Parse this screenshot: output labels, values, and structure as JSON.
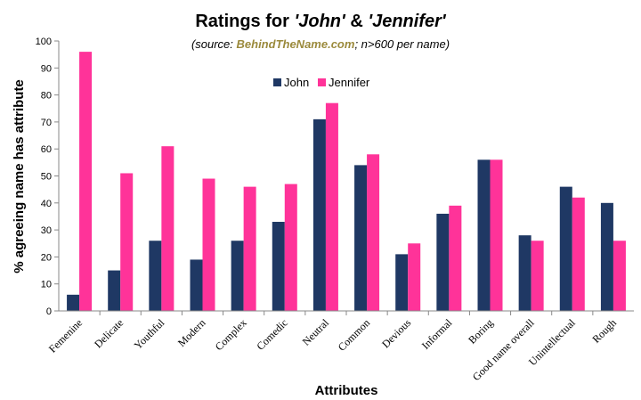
{
  "chart_data": {
    "type": "bar",
    "title_prefix": "Ratings for ",
    "title_name1": "'John'",
    "title_amp": " & ",
    "title_name2": "'Jennifer'",
    "subtitle_open": "(source: ",
    "subtitle_site": "BehindTheName.com",
    "subtitle_rest": "; n>600 per name)",
    "xlabel": "Attributes",
    "ylabel": "% agreeing name has attribute",
    "ylim": [
      0,
      100
    ],
    "yticks": [
      0,
      10,
      20,
      30,
      40,
      50,
      60,
      70,
      80,
      90,
      100
    ],
    "grid": false,
    "legend_position": "top-center",
    "categories": [
      "Femenine",
      "Delicate",
      "Youthful",
      "Modern",
      "Complex",
      "Comedic",
      "Neutral",
      "Common",
      "Devious",
      "Informal",
      "Boring",
      "Good name overall",
      "Unintellectual",
      "Rough"
    ],
    "series": [
      {
        "name": "John",
        "color": "#1f3864",
        "values": [
          6,
          15,
          26,
          19,
          26,
          33,
          71,
          54,
          21,
          36,
          56,
          28,
          46,
          40
        ]
      },
      {
        "name": "Jennifer",
        "color": "#ff3399",
        "values": [
          96,
          51,
          61,
          49,
          46,
          47,
          77,
          58,
          25,
          39,
          56,
          26,
          42,
          26
        ]
      }
    ],
    "source_color": "#9b8a3c"
  }
}
